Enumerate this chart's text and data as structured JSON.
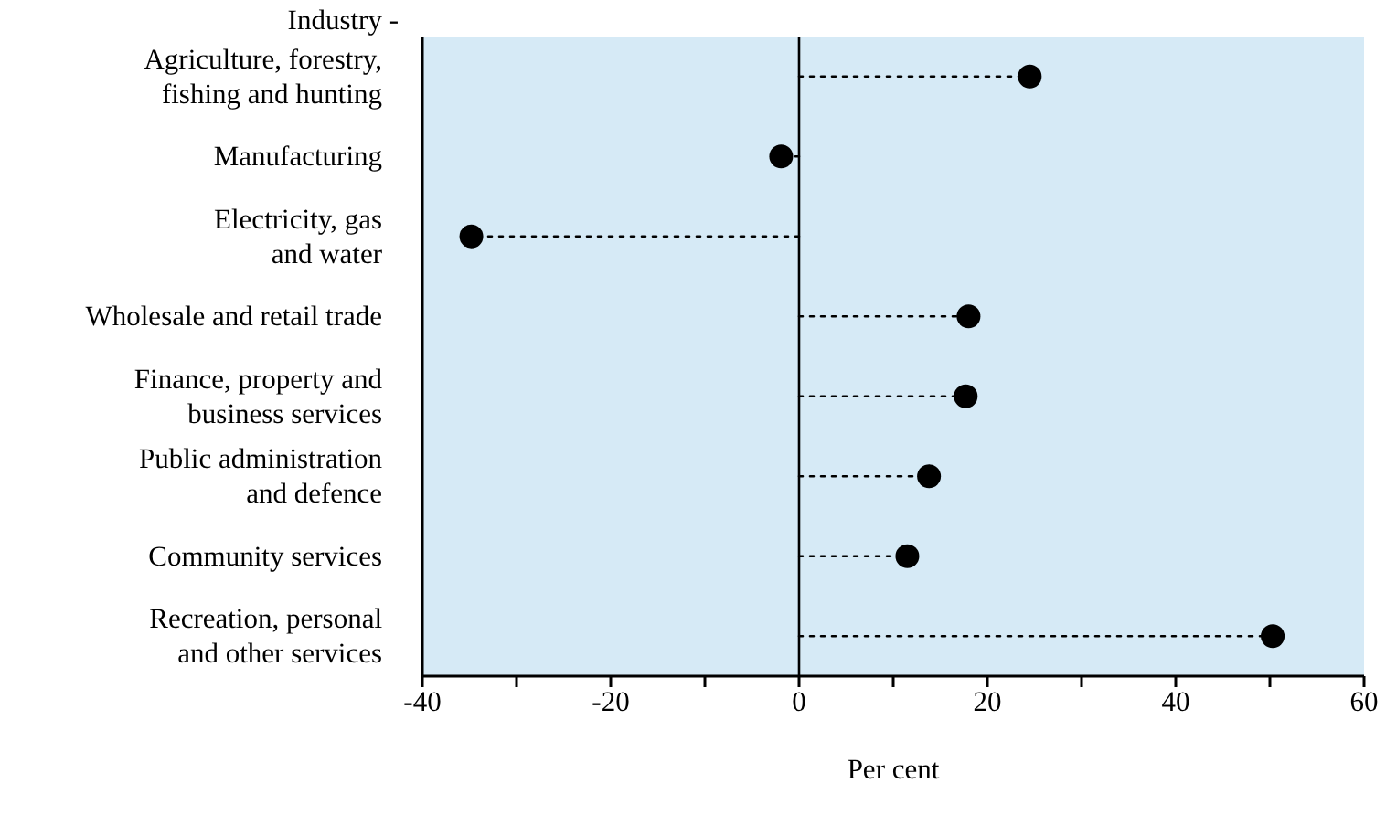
{
  "chart_data": {
    "type": "lollipop",
    "orientation": "horizontal",
    "ylabel": "Industry -",
    "xlabel": "Per cent",
    "categories": [
      "Agriculture, forestry,\nfishing and hunting",
      "Manufacturing",
      "Electricity, gas\nand water",
      "Wholesale and retail trade",
      "Finance, property and\nbusiness services",
      "Public administration\nand defence",
      "Community services",
      "Recreation, personal\nand other services"
    ],
    "values": [
      24.5,
      -1.9,
      -34.8,
      18,
      17.7,
      13.8,
      11.5,
      50.3
    ],
    "color": "#000000",
    "marker": "circle",
    "line_style": "dotted",
    "xlim": [
      -40,
      60
    ],
    "xticks": [
      -40,
      {
        "value": -30,
        "label": null
      },
      -20,
      {
        "value": -10,
        "label": null
      },
      0,
      {
        "value": 10,
        "label": null
      },
      20,
      {
        "value": 30,
        "label": null
      },
      40,
      {
        "value": 50,
        "label": null
      },
      60
    ],
    "ref_lines": [
      {
        "axis": "x",
        "value": 0,
        "color": "#000000"
      }
    ],
    "grid": false
  }
}
